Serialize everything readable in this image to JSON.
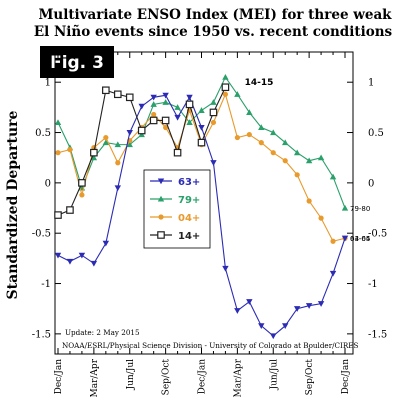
{
  "figure": {
    "title_line1": "Multivariate ENSO Index (MEI) for three weak",
    "title_line2": "El Niño events since 1950 vs. recent conditions",
    "fig_badge": "Fig. 3",
    "update_text": "Update: 2 May 2015",
    "credit_text": "NOAA/ESRL/Physical Science Division - University of Colorado at Boulder/CIRES",
    "peak_annotation": "14-15"
  },
  "colors": {
    "63+": "#2b2bb5",
    "79+": "#2aa06a",
    "04+": "#e89a2c",
    "14+": "#222222",
    "frame": "#000000"
  },
  "chart_data": {
    "type": "line",
    "title": "Multivariate ENSO Index (MEI) for three weak El Niño events since 1950 vs. recent conditions",
    "xlabel": "",
    "ylabel": "Standardized Departure",
    "ylim": [
      -1.7,
      1.3
    ],
    "yticks": [
      -1.5,
      -1,
      -0.5,
      0,
      0.5,
      1
    ],
    "ytick_labels": [
      "-1.5",
      "-1",
      "-0.5",
      "0",
      "0.5",
      "1"
    ],
    "x_tick_labels": [
      "Dec/Jan",
      "Mar/Apr",
      "Jun/Jul",
      "Sep/Oct",
      "Dec/Jan",
      "Mar/Apr",
      "Jun/Jul",
      "Sep/Oct",
      "Dec/Jan"
    ],
    "x_tick_index": [
      0,
      3,
      6,
      9,
      12,
      15,
      18,
      21,
      24
    ],
    "grid": false,
    "legend_position": "center-left",
    "series": [
      {
        "name": "63+",
        "marker": "triangle-down",
        "end_label": "63-64",
        "values": [
          -0.72,
          -0.78,
          -0.72,
          -0.8,
          -0.6,
          -0.05,
          0.5,
          0.76,
          0.85,
          0.87,
          0.65,
          0.85,
          0.55,
          0.2,
          -0.85,
          -1.27,
          -1.18,
          -1.42,
          -1.52,
          -1.42,
          -1.25,
          -1.22,
          -1.2,
          -0.9,
          -0.55
        ]
      },
      {
        "name": "79+",
        "marker": "triangle-up",
        "end_label": "79-80",
        "values": [
          0.6,
          0.35,
          -0.05,
          0.25,
          0.4,
          0.38,
          0.38,
          0.48,
          0.78,
          0.8,
          0.75,
          0.6,
          0.72,
          0.8,
          1.05,
          0.88,
          0.7,
          0.55,
          0.5,
          0.4,
          0.3,
          0.22,
          0.25,
          0.06,
          -0.25
        ]
      },
      {
        "name": "04+",
        "marker": "circle",
        "end_label": "04-05",
        "values": [
          0.3,
          0.33,
          -0.12,
          0.35,
          0.45,
          0.2,
          0.42,
          0.55,
          0.68,
          0.55,
          0.35,
          0.72,
          0.38,
          0.6,
          0.88,
          0.45,
          0.48,
          0.4,
          0.3,
          0.22,
          0.08,
          -0.18,
          -0.35,
          -0.58,
          -0.55
        ]
      },
      {
        "name": "14+",
        "marker": "square",
        "end_label": "",
        "values": [
          -0.32,
          -0.27,
          0.0,
          0.3,
          0.92,
          0.88,
          0.85,
          0.52,
          0.62,
          0.62,
          0.3,
          0.78,
          0.4,
          0.7,
          0.95
        ]
      }
    ]
  }
}
